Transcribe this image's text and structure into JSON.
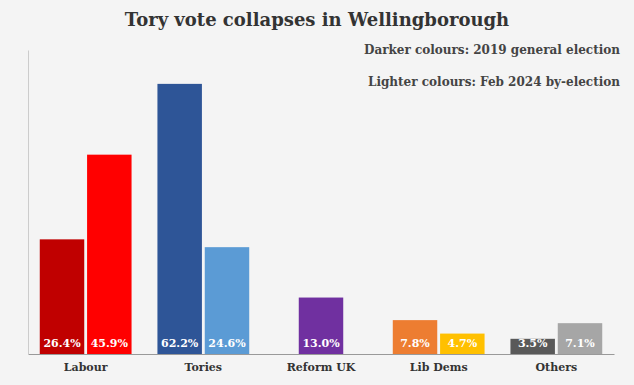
{
  "chart_data": {
    "type": "bar",
    "title": "Tory vote collapses in Wellingborough",
    "categories": [
      "Labour",
      "Tories",
      "Reform UK",
      "Lib Dems",
      "Others"
    ],
    "series": [
      {
        "name": "Darker colours: 2019 general election",
        "values": [
          26.4,
          62.2,
          null,
          7.8,
          3.5
        ],
        "value_labels": [
          "26.4%",
          "62.2%",
          null,
          "7.8%",
          "3.5%"
        ],
        "colors": [
          "#c00000",
          "#2e5597",
          null,
          "#ed7d31",
          "#595959"
        ]
      },
      {
        "name": "Lighter colours: Feb 2024 by-election",
        "values": [
          45.9,
          24.6,
          13.0,
          4.7,
          7.1
        ],
        "value_labels": [
          "45.9%",
          "24.6%",
          "13.0%",
          "4.7%",
          "7.1%"
        ],
        "colors": [
          "#ff0000",
          "#5b9bd5",
          "#7030a0",
          "#ffc000",
          "#a6a6a6"
        ]
      }
    ],
    "ylim": [
      0,
      70
    ],
    "yticks": [],
    "grid": false,
    "data_labels": true,
    "tick_labels": "x"
  }
}
